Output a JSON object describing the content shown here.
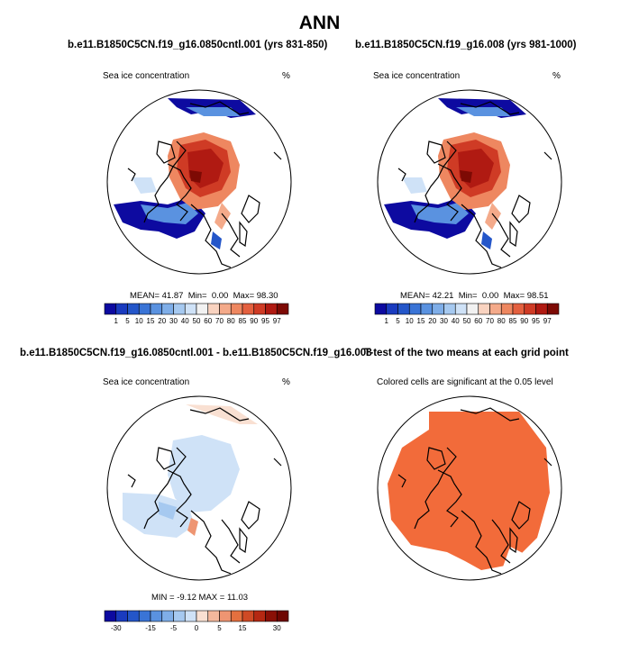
{
  "figure": {
    "title": "ANN",
    "panels": [
      {
        "title": "b.e11.B1850C5CN.f19_g16.0850cntl.001 (yrs 831-850)",
        "field": "Sea ice concentration",
        "units": "%",
        "stats": {
          "mean_label": "MEAN=",
          "mean": "41.87",
          "min_label": "Min=",
          "min": "0.00",
          "max_label": "Max=",
          "max": "98.30"
        }
      },
      {
        "title": "b.e11.B1850C5CN.f19_g16.008 (yrs 981-1000)",
        "field": "Sea ice concentration",
        "units": "%",
        "stats": {
          "mean_label": "MEAN=",
          "mean": "42.21",
          "min_label": "Min=",
          "min": "0.00",
          "max_label": "Max=",
          "max": "98.51"
        }
      },
      {
        "title": "b.e11.B1850C5CN.f19_g16.0850cntl.001 - b.e11.B1850C5CN.f19_g16.008",
        "field": "Sea ice concentration",
        "units": "%",
        "stats_text": "MIN = -9.12 MAX = 11.03"
      },
      {
        "title": "T-test of the two means at each grid point",
        "note": "Colored cells are significant at the 0.05 level"
      }
    ]
  },
  "chart_data": [
    {
      "type": "heatmap",
      "projection": "north-polar-stereographic",
      "variable": "Sea ice concentration",
      "units": "%",
      "mean": 41.87,
      "min": 0.0,
      "max": 98.3,
      "colorbar": {
        "levels": [
          1,
          5,
          10,
          15,
          20,
          30,
          40,
          50,
          60,
          70,
          80,
          85,
          90,
          95,
          97
        ],
        "labels": [
          "1",
          "5",
          "10",
          "15",
          "20",
          "30",
          "40",
          "50",
          "60",
          "70",
          "80",
          "85",
          "90",
          "95",
          "97"
        ],
        "colors": [
          "#0d0aa0",
          "#1a3bbf",
          "#2456c9",
          "#3a74d6",
          "#5a92e0",
          "#7faee8",
          "#a6c9f0",
          "#cfe2f7",
          "#f2f2f2",
          "#f9d3c0",
          "#f4aa8a",
          "#ee8760",
          "#e4603f",
          "#cf3b25",
          "#b01a12",
          "#7d0a04"
        ]
      }
    },
    {
      "type": "heatmap",
      "projection": "north-polar-stereographic",
      "variable": "Sea ice concentration",
      "units": "%",
      "mean": 42.21,
      "min": 0.0,
      "max": 98.51,
      "colorbar": {
        "levels": [
          1,
          5,
          10,
          15,
          20,
          30,
          40,
          50,
          60,
          70,
          80,
          85,
          90,
          95,
          97
        ],
        "labels": [
          "1",
          "5",
          "10",
          "15",
          "20",
          "30",
          "40",
          "50",
          "60",
          "70",
          "80",
          "85",
          "90",
          "95",
          "97"
        ],
        "colors": [
          "#0d0aa0",
          "#1a3bbf",
          "#2456c9",
          "#3a74d6",
          "#5a92e0",
          "#7faee8",
          "#a6c9f0",
          "#cfe2f7",
          "#f2f2f2",
          "#f9d3c0",
          "#f4aa8a",
          "#ee8760",
          "#e4603f",
          "#cf3b25",
          "#b01a12",
          "#7d0a04"
        ]
      }
    },
    {
      "type": "heatmap",
      "projection": "north-polar-stereographic",
      "variable": "Sea ice concentration difference",
      "units": "%",
      "min": -9.12,
      "max": 11.03,
      "colorbar": {
        "levels": [
          -30,
          -25,
          -20,
          -15,
          -10,
          -5,
          -2,
          0,
          2,
          5,
          10,
          15,
          20,
          25,
          30
        ],
        "labels": [
          "-30",
          "-15",
          "-5",
          "0",
          "5",
          "15",
          "30"
        ],
        "colors": [
          "#0d0aa0",
          "#1a3bbf",
          "#2456c9",
          "#3a74d6",
          "#5a92e0",
          "#7faee8",
          "#a6c9f0",
          "#cfe2f7",
          "#f9e0d2",
          "#f4b89c",
          "#ee9572",
          "#e4703f",
          "#cf4a25",
          "#b52812",
          "#8a1006",
          "#6e0602"
        ]
      }
    },
    {
      "type": "heatmap",
      "projection": "north-polar-stereographic",
      "variable": "T-test significance",
      "significant_color": "#f26b3a",
      "significance_level": 0.05
    }
  ]
}
